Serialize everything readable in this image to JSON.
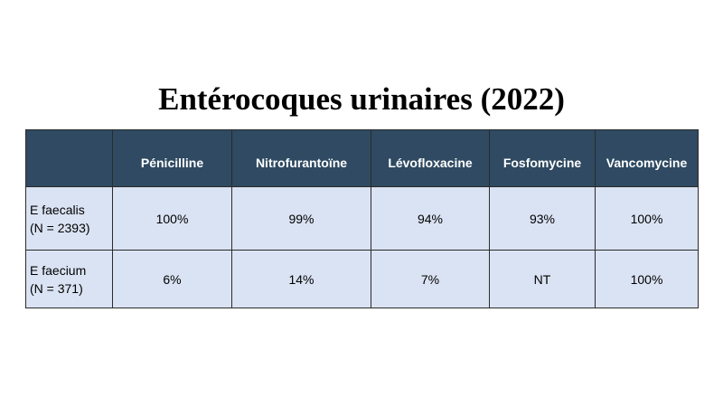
{
  "title": "Entérocoques urinaires (2022)",
  "table": {
    "header": [
      "Pénicilline",
      "Nitrofurantoïne",
      "Lévofloxacine",
      "Fosfomycine",
      "Vancomycine"
    ],
    "rows": [
      {
        "label": [
          "E faecalis",
          "(N = 2393)"
        ],
        "cells": [
          "100%",
          "99%",
          "94%",
          "93%",
          "100%"
        ]
      },
      {
        "label": [
          "E faecium",
          "(N = 371)"
        ],
        "cells": [
          "6%",
          "14%",
          "7%",
          "NT",
          "100%"
        ]
      }
    ]
  }
}
